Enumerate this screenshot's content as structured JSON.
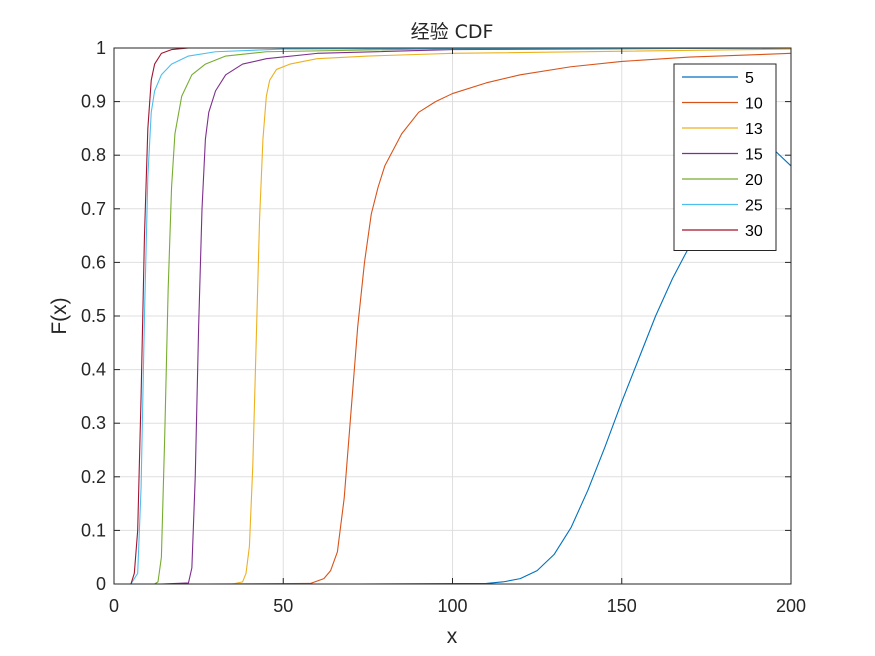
{
  "chart_data": {
    "type": "line",
    "title": "经验 CDF",
    "xlabel": "x",
    "ylabel": "F(x)",
    "xlim": [
      0,
      200
    ],
    "ylim": [
      0,
      1
    ],
    "xticks": [
      0,
      50,
      100,
      150,
      200
    ],
    "xtick_labels": [
      "0",
      "50",
      "100",
      "150",
      "200"
    ],
    "yticks": [
      0,
      0.1,
      0.2,
      0.3,
      0.4,
      0.5,
      0.6,
      0.7,
      0.8,
      0.9,
      1
    ],
    "ytick_labels": [
      "0",
      "0.1",
      "0.2",
      "0.3",
      "0.4",
      "0.5",
      "0.6",
      "0.7",
      "0.8",
      "0.9",
      "1"
    ],
    "grid": true,
    "legend_position": "top-right",
    "series": [
      {
        "name": "5",
        "color": "#0072BD",
        "points": [
          [
            72,
            0
          ],
          [
            110,
            0.001
          ],
          [
            115,
            0.004
          ],
          [
            120,
            0.01
          ],
          [
            125,
            0.025
          ],
          [
            130,
            0.055
          ],
          [
            135,
            0.105
          ],
          [
            140,
            0.175
          ],
          [
            145,
            0.255
          ],
          [
            150,
            0.34
          ],
          [
            155,
            0.42
          ],
          [
            160,
            0.5
          ],
          [
            165,
            0.57
          ],
          [
            170,
            0.63
          ],
          [
            175,
            0.68
          ],
          [
            180,
            0.72
          ],
          [
            185,
            0.76
          ],
          [
            190,
            0.79
          ],
          [
            195,
            0.81
          ],
          [
            200,
            0.78
          ]
        ]
      },
      {
        "name": "10",
        "color": "#D95319",
        "points": [
          [
            27,
            0
          ],
          [
            58,
            0.001
          ],
          [
            62,
            0.01
          ],
          [
            64,
            0.025
          ],
          [
            66,
            0.06
          ],
          [
            68,
            0.16
          ],
          [
            70,
            0.32
          ],
          [
            72,
            0.48
          ],
          [
            74,
            0.6
          ],
          [
            76,
            0.69
          ],
          [
            78,
            0.74
          ],
          [
            80,
            0.78
          ],
          [
            85,
            0.84
          ],
          [
            90,
            0.88
          ],
          [
            95,
            0.9
          ],
          [
            100,
            0.915
          ],
          [
            110,
            0.935
          ],
          [
            120,
            0.95
          ],
          [
            135,
            0.965
          ],
          [
            150,
            0.975
          ],
          [
            170,
            0.983
          ],
          [
            200,
            0.99
          ]
        ]
      },
      {
        "name": "13",
        "color": "#EDB120",
        "points": [
          [
            35,
            0
          ],
          [
            38,
            0.004
          ],
          [
            39,
            0.02
          ],
          [
            40,
            0.07
          ],
          [
            41,
            0.22
          ],
          [
            42,
            0.45
          ],
          [
            43,
            0.68
          ],
          [
            44,
            0.83
          ],
          [
            45,
            0.91
          ],
          [
            46,
            0.94
          ],
          [
            48,
            0.96
          ],
          [
            52,
            0.97
          ],
          [
            60,
            0.98
          ],
          [
            75,
            0.985
          ],
          [
            100,
            0.99
          ],
          [
            200,
            0.998
          ]
        ]
      },
      {
        "name": "15",
        "color": "#7E2F8E",
        "points": [
          [
            14,
            0
          ],
          [
            22,
            0.002
          ],
          [
            23,
            0.03
          ],
          [
            24,
            0.2
          ],
          [
            25,
            0.48
          ],
          [
            26,
            0.7
          ],
          [
            27,
            0.83
          ],
          [
            28,
            0.88
          ],
          [
            30,
            0.92
          ],
          [
            33,
            0.95
          ],
          [
            38,
            0.97
          ],
          [
            45,
            0.98
          ],
          [
            60,
            0.99
          ],
          [
            100,
            0.997
          ],
          [
            200,
            1
          ]
        ]
      },
      {
        "name": "20",
        "color": "#77AC30",
        "points": [
          [
            12,
            0
          ],
          [
            13,
            0.004
          ],
          [
            14,
            0.05
          ],
          [
            15,
            0.28
          ],
          [
            16,
            0.55
          ],
          [
            17,
            0.74
          ],
          [
            18,
            0.84
          ],
          [
            20,
            0.91
          ],
          [
            23,
            0.95
          ],
          [
            27,
            0.97
          ],
          [
            33,
            0.985
          ],
          [
            45,
            0.993
          ],
          [
            100,
            0.999
          ],
          [
            200,
            1
          ]
        ]
      },
      {
        "name": "25",
        "color": "#4DBEEE",
        "points": [
          [
            5,
            0
          ],
          [
            7,
            0.02
          ],
          [
            8,
            0.18
          ],
          [
            9,
            0.5
          ],
          [
            10,
            0.76
          ],
          [
            11,
            0.88
          ],
          [
            12,
            0.92
          ],
          [
            14,
            0.95
          ],
          [
            17,
            0.97
          ],
          [
            22,
            0.985
          ],
          [
            30,
            0.993
          ],
          [
            50,
            0.998
          ],
          [
            200,
            1
          ]
        ]
      },
      {
        "name": "30",
        "color": "#A2142F",
        "points": [
          [
            5,
            0
          ],
          [
            6,
            0.02
          ],
          [
            7,
            0.1
          ],
          [
            8,
            0.35
          ],
          [
            9,
            0.65
          ],
          [
            10,
            0.85
          ],
          [
            11,
            0.94
          ],
          [
            12,
            0.97
          ],
          [
            14,
            0.99
          ],
          [
            17,
            0.997
          ],
          [
            22,
            1
          ],
          [
            60,
            1
          ]
        ]
      }
    ]
  }
}
